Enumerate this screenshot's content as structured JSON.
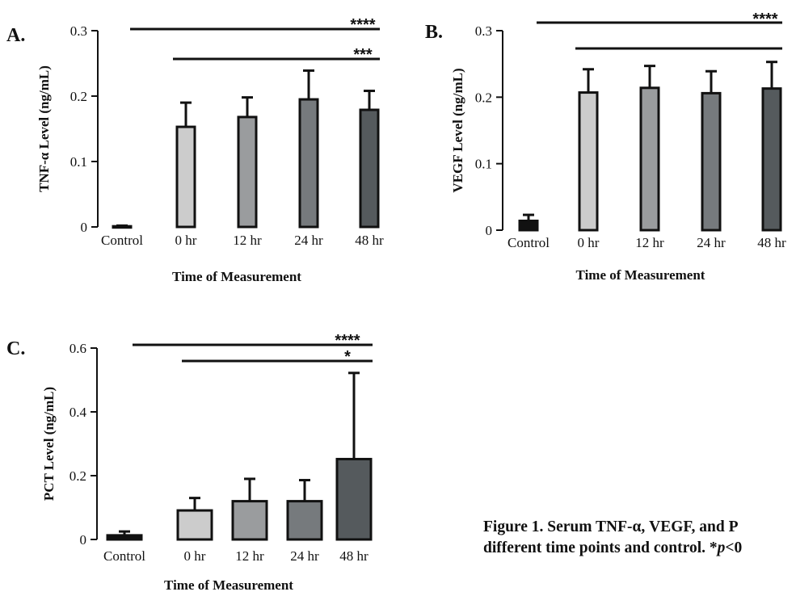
{
  "figure": {
    "caption_line1": "Figure 1.  Serum TNF-α, VEGF, and P",
    "caption_line2_prefix": "different time points and control. *",
    "caption_line2_p": "p",
    "caption_line2_suffix": "<0"
  },
  "chart_data": [
    {
      "type": "bar",
      "panel_label": "A.",
      "categories": [
        "Control",
        "0 hr",
        "12 hr",
        "24 hr",
        "48 hr"
      ],
      "values": [
        0.001,
        0.153,
        0.168,
        0.195,
        0.179
      ],
      "errors": [
        0.001,
        0.037,
        0.03,
        0.044,
        0.029
      ],
      "bar_colors": [
        "#111111",
        "#cccccc",
        "#9a9c9e",
        "#767a7d",
        "#555a5d"
      ],
      "xlabel": "Time of Measurement",
      "ylabel": "TNF-α Level (ng/mL)",
      "ylim": [
        0,
        0.3
      ],
      "yticks": [
        0,
        0.1,
        0.2,
        0.3
      ],
      "ytick_labels": [
        "0",
        "0.1",
        "0.2",
        "0.3"
      ],
      "significance": [
        {
          "from": "Control",
          "to": "48 hr",
          "label": "****"
        },
        {
          "from": "0 hr",
          "to": "48 hr",
          "label": "***"
        }
      ]
    },
    {
      "type": "bar",
      "panel_label": "B.",
      "categories": [
        "Control",
        "0 hr",
        "12 hr",
        "24 hr",
        "48 hr"
      ],
      "values": [
        0.014,
        0.207,
        0.214,
        0.206,
        0.213
      ],
      "errors": [
        0.009,
        0.035,
        0.033,
        0.033,
        0.04
      ],
      "bar_colors": [
        "#111111",
        "#cccccc",
        "#9a9c9e",
        "#767a7d",
        "#555a5d"
      ],
      "xlabel": "Time of Measurement",
      "ylabel": "VEGF Level (ng/mL)",
      "ylim": [
        0,
        0.3
      ],
      "yticks": [
        0,
        0.1,
        0.2,
        0.3
      ],
      "ytick_labels": [
        "0",
        "0.1",
        "0.2",
        "0.3"
      ],
      "significance": [
        {
          "from": "Control",
          "to": "48 hr",
          "label": "****"
        },
        {
          "from": "0 hr",
          "to": "48 hr",
          "label": ""
        }
      ]
    },
    {
      "type": "bar",
      "panel_label": "C.",
      "categories": [
        "Control",
        "0 hr",
        "12 hr",
        "24 hr",
        "48 hr"
      ],
      "values": [
        0.013,
        0.091,
        0.12,
        0.12,
        0.252
      ],
      "errors": [
        0.012,
        0.039,
        0.07,
        0.066,
        0.27
      ],
      "bar_colors": [
        "#111111",
        "#cccccc",
        "#9a9c9e",
        "#767a7d",
        "#555a5d"
      ],
      "xlabel": "Time of Measurement",
      "ylabel": "PCT Level (ng/mL)",
      "ylim": [
        0,
        0.6
      ],
      "yticks": [
        0,
        0.2,
        0.4,
        0.6
      ],
      "ytick_labels": [
        "0",
        "0.2",
        "0.4",
        "0.6"
      ],
      "significance": [
        {
          "from": "Control",
          "to": "48 hr",
          "label": "****"
        },
        {
          "from": "0 hr",
          "to": "48 hr",
          "label": "*"
        }
      ]
    }
  ]
}
